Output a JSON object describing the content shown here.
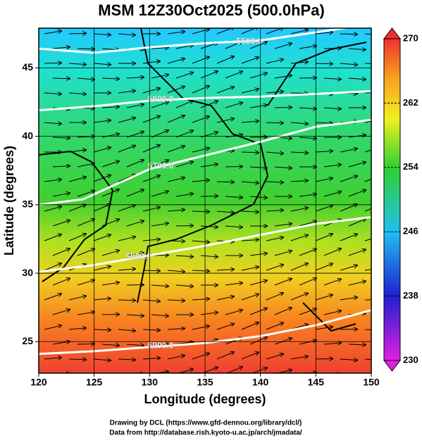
{
  "chart_data": {
    "type": "contour",
    "title": "MSM 12Z30Oct2025 (500.0hPa)",
    "xlabel": "Longitude (degrees)",
    "ylabel": "Latitude  (degrees)",
    "xlim": [
      120,
      150
    ],
    "xticks": [
      120,
      125,
      130,
      135,
      140,
      145,
      150
    ],
    "ylim": [
      22.7,
      47.9
    ],
    "yticks": [
      25,
      30,
      35,
      40,
      45
    ],
    "colorbar": {
      "lim": [
        230,
        270
      ],
      "ticks": [
        230,
        238,
        246,
        254,
        262,
        270
      ]
    },
    "contours": [
      {
        "value": 5500,
        "label": "5500.0"
      },
      {
        "value": 5600,
        "label": "5600.0"
      },
      {
        "value": 5700,
        "label": "5700.0"
      },
      {
        "value": 5800,
        "label": "5800.0"
      },
      {
        "value": 5900,
        "label": "5900.0"
      }
    ],
    "credits": [
      "Drawing by DCL (https://www.gfd-dennou.org/library/dcl/)",
      "Data from http://database.rish.kyoto-u.ac.jp/arch/jmadata/"
    ]
  }
}
